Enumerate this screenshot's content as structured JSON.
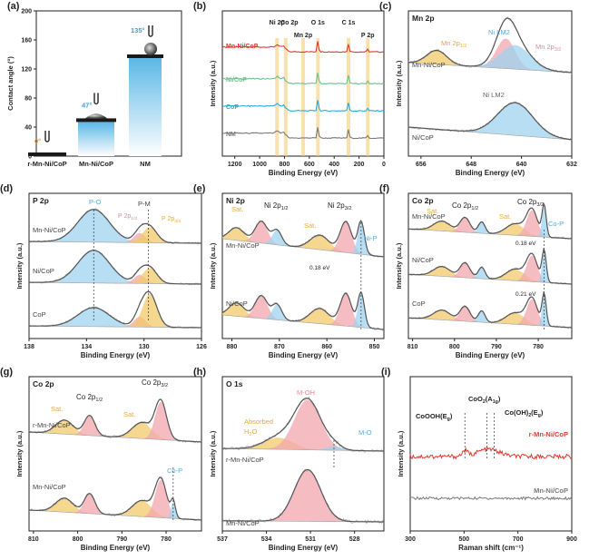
{
  "figure": {
    "panel_letters": [
      "(a)",
      "(b)",
      "(c)",
      "(d)",
      "(e)",
      "(f)",
      "(g)",
      "(h)",
      "(i)"
    ],
    "colors": {
      "axis": "#222222",
      "gray": "#7a7a7a",
      "red": "#e03a2f",
      "green": "#6fbf8a",
      "cyan": "#2aa9d6",
      "blue": "#4aa8d8",
      "lightblue": "#9fd3ee",
      "pink": "#f1a7ae",
      "orange": "#f2c96a",
      "envelope": "#555555",
      "ni_label": "#5aa9d9",
      "p2p_orange": "#e7a842",
      "p2p_pink": "#e8879a"
    }
  },
  "chart_data": [
    {
      "panel": "(a)",
      "type": "bar",
      "ylabel": "Contact angle (°)",
      "ylim": [
        0,
        200
      ],
      "yticks": [
        0,
        40,
        80,
        120,
        160,
        200
      ],
      "categories": [
        "r-Mn-Ni/CoP",
        "Mn-Ni/CoP",
        "NM"
      ],
      "values": [
        0,
        47,
        135
      ],
      "angle_labels": [
        "0°",
        "47°",
        "135°"
      ]
    },
    {
      "panel": "(b)",
      "type": "line",
      "title": "",
      "xlabel": "Binding Energy (eV)",
      "ylabel": "Intensity (a.u.)",
      "xlim": [
        1300,
        0
      ],
      "xticks": [
        1200,
        1000,
        800,
        600,
        400,
        200,
        0
      ],
      "series": [
        {
          "name": "Mn-Ni/CoP",
          "color": "red"
        },
        {
          "name": "Ni/CoP",
          "color": "green"
        },
        {
          "name": "CoP",
          "color": "cyan"
        },
        {
          "name": "NM",
          "color": "gray"
        }
      ],
      "peak_labels": [
        "Ni 2p",
        "Co 2p",
        "Mn 2p",
        "O 1s",
        "C 1s",
        "P 2p"
      ],
      "peak_positions": [
        860,
        790,
        650,
        531,
        285,
        130
      ]
    },
    {
      "panel": "(c)",
      "type": "line",
      "title": "Mn 2p",
      "xlabel": "Binding Energy (eV)",
      "ylabel": "Intensity (a.u.)",
      "xlim": [
        658,
        632
      ],
      "xticks": [
        656,
        648,
        640,
        632
      ],
      "series": [
        {
          "name": "Mn-Ni/CoP"
        },
        {
          "name": "Ni/CoP"
        }
      ],
      "annotations": {
        "mn_1_2": "Mn 2p",
        "mn_1_2_sub": "1/2",
        "mn_3_2": "Mn 2p",
        "mn_3_2_sub": "3/2",
        "ni_lm2_top": "Ni LM2",
        "ni_lm2_bottom": "Ni LM2"
      }
    },
    {
      "panel": "(d)",
      "type": "line",
      "title": "P 2p",
      "xlabel": "Binding Energy (eV)",
      "ylabel": "Intensity (a.u.)",
      "xlim": [
        138,
        126
      ],
      "xticks": [
        138,
        134,
        130,
        126
      ],
      "series": [
        {
          "name": "Mn-Ni/CoP"
        },
        {
          "name": "Ni/CoP"
        },
        {
          "name": "CoP"
        }
      ],
      "annotations": {
        "po": "P-O",
        "pm": "P-M",
        "p12": "P 2p",
        "p12_sub": "1/2",
        "p32": "P 2p",
        "p32_sub": "3/2"
      }
    },
    {
      "panel": "(e)",
      "type": "line",
      "title": "Ni 2p",
      "xlabel": "Binding Energy (eV)",
      "ylabel": "Intensity (a.u.)",
      "xlim": [
        882,
        848
      ],
      "xticks": [
        880,
        870,
        860,
        850
      ],
      "series": [
        {
          "name": "Mn-Ni/CoP"
        },
        {
          "name": "Ni/CoP"
        }
      ],
      "annotations": {
        "sat1": "Sat.",
        "ni12": "Ni 2p",
        "ni12_sub": "1/2",
        "sat2": "Sat.",
        "ni32": "Ni 2p",
        "ni32_sub": "3/2",
        "nip": "Ni-P",
        "shift": "0.18 eV"
      }
    },
    {
      "panel": "(f)",
      "type": "line",
      "title": "Co 2p",
      "xlabel": "Binding Energy (eV)",
      "ylabel": "Intensity (a.u.)",
      "xlim": [
        811,
        772
      ],
      "xticks": [
        810,
        800,
        790,
        780
      ],
      "series": [
        {
          "name": "Mn-Ni/CoP"
        },
        {
          "name": "Ni/CoP"
        },
        {
          "name": "CoP"
        }
      ],
      "annotations": {
        "sat1": "Sat.",
        "co12": "Co 2p",
        "co12_sub": "1/2",
        "sat2": "Sat.",
        "co32": "Co 2p",
        "co32_sub": "3/2",
        "cop": "Co-P",
        "shift1": "0.18 eV",
        "shift2": "0.21 eV"
      }
    },
    {
      "panel": "(g)",
      "type": "line",
      "title": "Co 2p",
      "xlabel": "Binding Energy (eV)",
      "ylabel": "Intensity (a.u.)",
      "xlim": [
        811,
        772
      ],
      "xticks": [
        810,
        800,
        790,
        780
      ],
      "series": [
        {
          "name": "r-Mn-Ni/CoP"
        },
        {
          "name": "Mn-Ni/CoP"
        }
      ],
      "annotations": {
        "sat1": "Sat.",
        "co12": "Co 2p",
        "co12_sub": "1/2",
        "sat2": "Sat.",
        "co32": "Co 2p",
        "co32_sub": "3/2",
        "cop": "Co-P"
      }
    },
    {
      "panel": "(h)",
      "type": "line",
      "title": "O 1s",
      "xlabel": "Binding Energy (eV)",
      "ylabel": "Intensity (a.u.)",
      "xlim": [
        537,
        526
      ],
      "xticks": [
        537,
        534,
        531,
        528
      ],
      "series": [
        {
          "name": "r-Mn-Ni/CoP"
        },
        {
          "name": "Mn-Ni/CoP"
        }
      ],
      "annotations": {
        "moh": "M-OH",
        "absorbed": "Absorbed",
        "h2o": "H",
        "h2o_sub": "2",
        "h2o_end": "O",
        "mo": "M-O"
      }
    },
    {
      "panel": "(i)",
      "type": "line",
      "xlabel": "Raman shift (cm⁻¹)",
      "ylabel": "Intensity (a.u.)",
      "xlim": [
        300,
        900
      ],
      "xticks": [
        300,
        500,
        700,
        900
      ],
      "series": [
        {
          "name": "r-Mn-Ni/CoP",
          "color": "red"
        },
        {
          "name": "Mn-Ni/CoP",
          "color": "gray"
        }
      ],
      "annotations": {
        "cooh": "CoOOH(E",
        "cooh_sub": "g",
        "coo2": "CoO",
        "coo2_sub1": "2",
        "coo2_mid": "(A",
        "coo2_sub2": "1g",
        "cooh2": "Co(OH)",
        "cooh2_sub1": "2",
        "cooh2_mid": "(E",
        "cooh2_sub2": "g",
        "close": ")"
      },
      "peak_positions": [
        503,
        585,
        612
      ]
    }
  ]
}
